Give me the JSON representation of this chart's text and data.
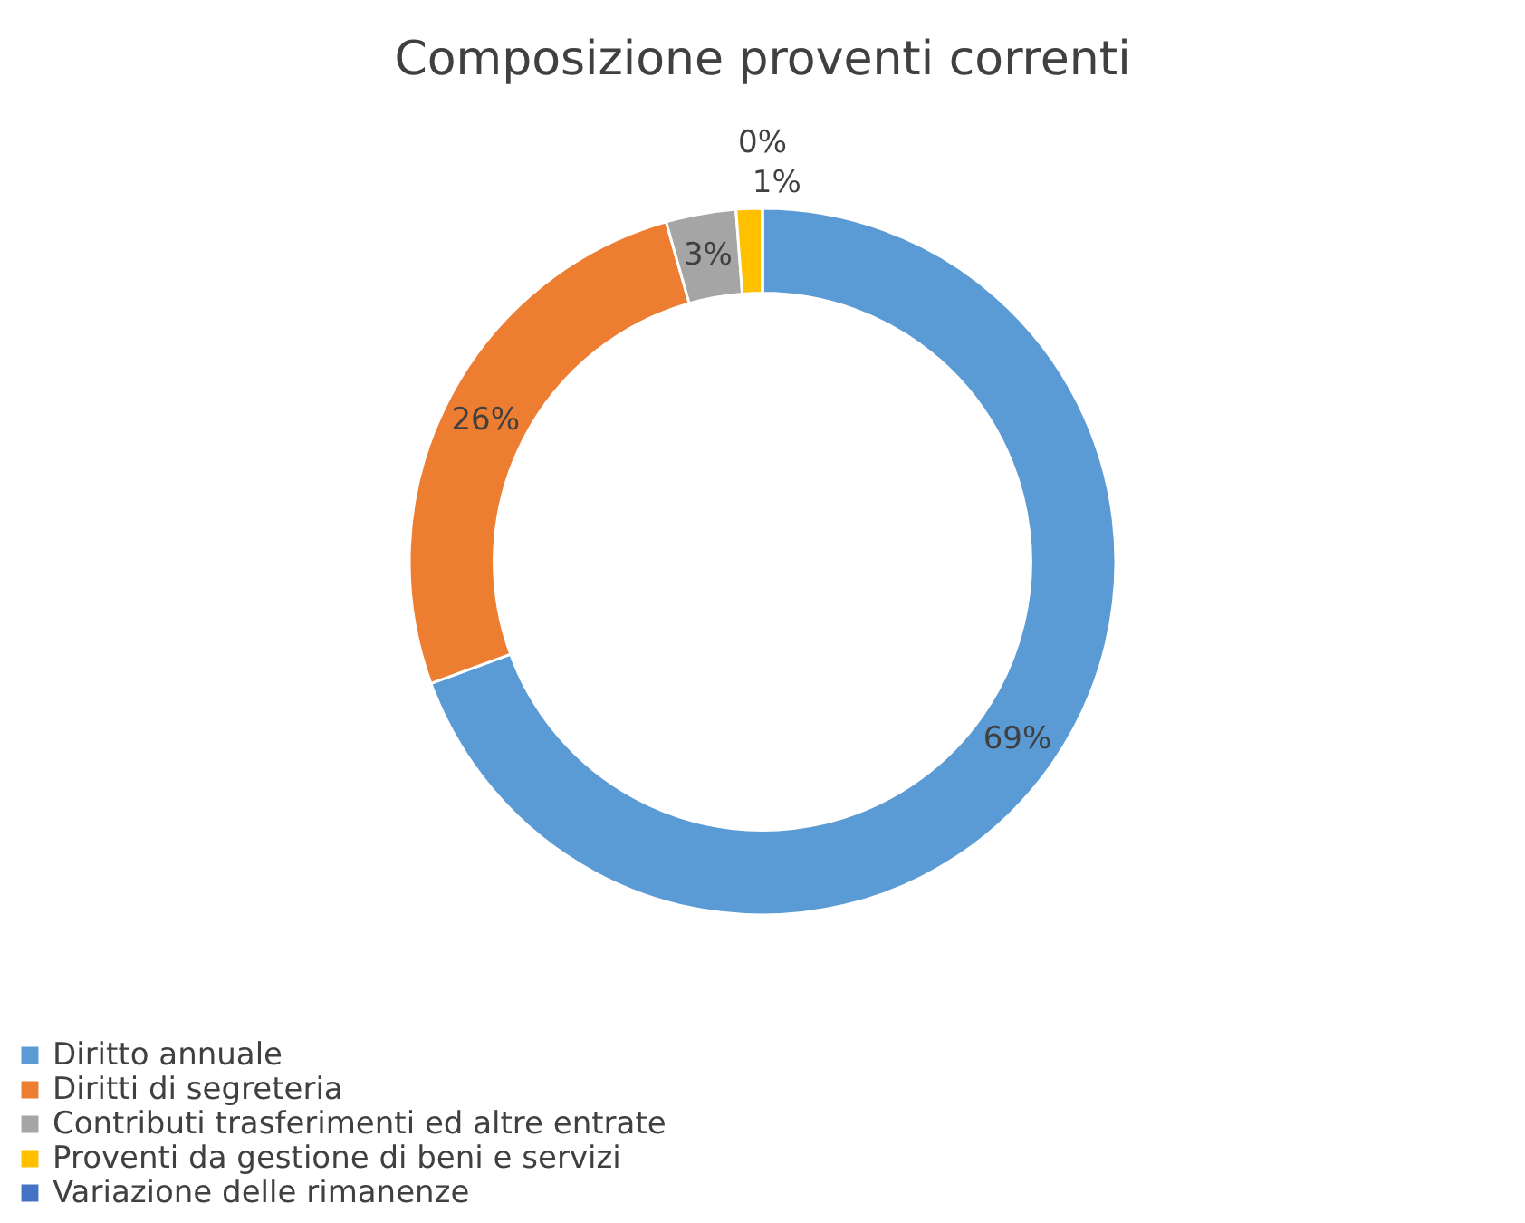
{
  "chart_data": {
    "type": "donut",
    "title": "Composizione proventi correnti",
    "categories": [
      "Diritto annuale",
      "Diritti di segreteria",
      "Contributi trasferimenti ed altre entrate",
      "Proventi da gestione di beni e servizi",
      "Variazione delle rimanenze"
    ],
    "values": [
      69.4,
      26.2,
      3.2,
      1.2,
      0
    ],
    "value_labels": [
      "69%",
      "26%",
      "3%",
      "1%",
      "0%"
    ],
    "colors": [
      "#5b9bd5",
      "#ed7d31",
      "#a5a5a5",
      "#ffc000",
      "#4472c4"
    ],
    "legend": "bottom"
  }
}
